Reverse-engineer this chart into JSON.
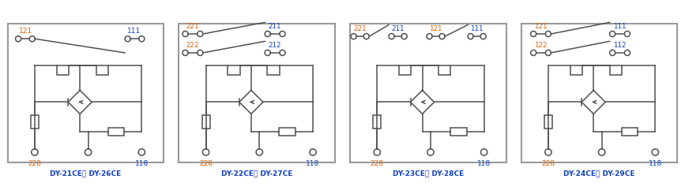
{
  "panels": [
    {
      "label": "DY-21CE， DY-26CE",
      "type": 0
    },
    {
      "label": "DY-22CE， DY-27CE",
      "type": 1
    },
    {
      "label": "DY-23CE， DY-28CE",
      "type": 2
    },
    {
      "label": "DY-24CE， DY-29CE",
      "type": 3
    }
  ],
  "orange": "#e06000",
  "blue": "#1040c0",
  "gray": "#505050",
  "bg": "#ffffff",
  "border": "#aaaaaa",
  "lw": 1.1
}
